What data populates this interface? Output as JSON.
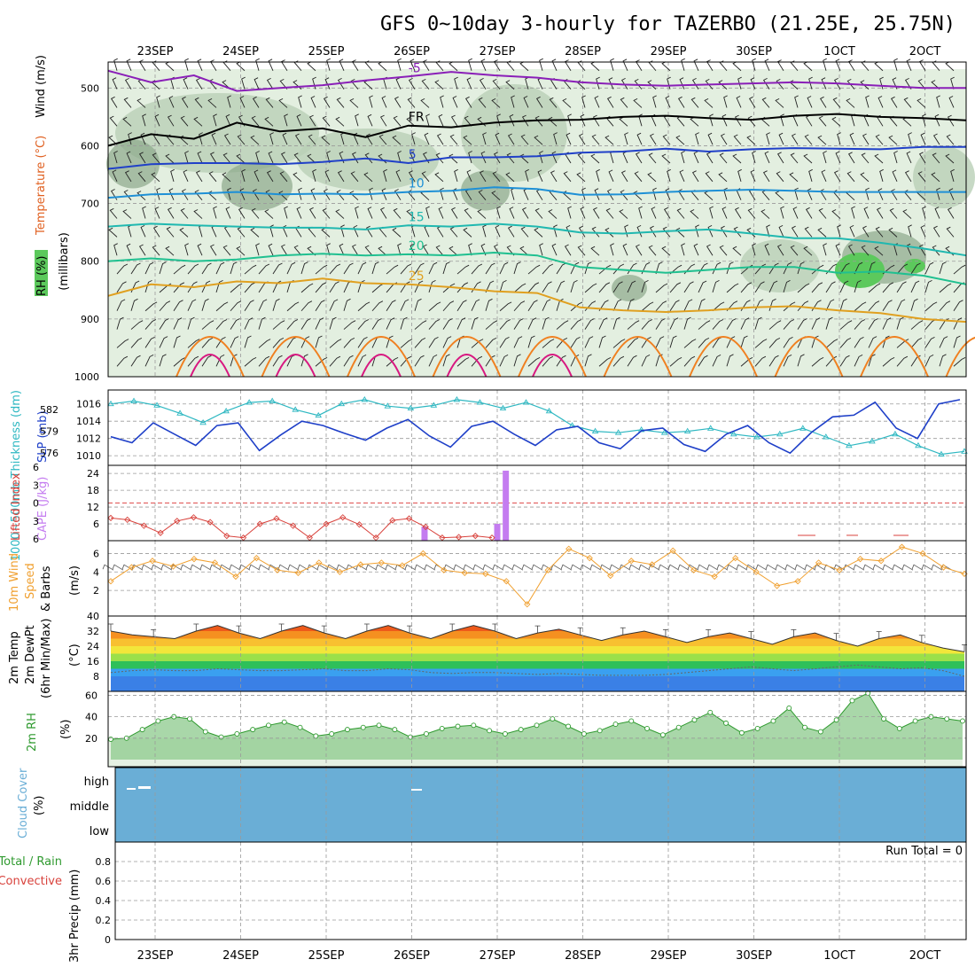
{
  "title": "GFS 0~10day 3-hourly for TAZERBO (21.25E, 25.75N)",
  "dates": [
    "23SEP",
    "24SEP",
    "25SEP",
    "26SEP",
    "27SEP",
    "28SEP",
    "29SEP",
    "30SEP",
    "1OCT",
    "2OCT"
  ],
  "colors": {
    "rh_light": "#e3efe0",
    "rh_mid": "#b9cfb7",
    "rh_dark": "#8ca88a",
    "rh_green": "#5cc95c",
    "thickness": "#2fb8c2",
    "slp": "#1e3fc8",
    "lifted": "#d8423c",
    "cape": "#c47cf0",
    "wind10": "#f0a030",
    "rh2m_fill": "#8cc98c",
    "rh2m_line": "#2f9a2f",
    "cloud": "#6aaed6"
  },
  "labels": {
    "upper_wind": "Wind (m/s)",
    "upper_temp": "Temperature (°C)",
    "upper_rh": "RH (%)",
    "upper_pressure": "(millibars)",
    "thickness": "1000~500mb Thickness (dm)",
    "slp": "SLP (mb)",
    "lifted": "Lifted Index",
    "cape": "CAPE (J/kg)",
    "wind10_a": "10m Wind",
    "wind10_b": "Speed",
    "wind10_c": "& Barbs",
    "wind10_unit": "(m/s)",
    "temp_a": "2m Temp",
    "temp_b": "2m DewPt",
    "temp_c": "(6hr Min/Max)",
    "temp_unit": "(°C)",
    "rh2m": "2m RH",
    "rh2m_unit": "(%)",
    "cloud_a": "Cloud Cover",
    "cloud_unit": "(%)",
    "precip_a": "Total / Rain",
    "precip_b": "Convective",
    "precip_c": "3hr Precip (mm)",
    "run_total": "Run Total = 0"
  },
  "cloud_levels": [
    "high",
    "middle",
    "low"
  ],
  "chart_data": [
    {
      "type": "line",
      "title": "Upper air cross-section",
      "ylabel": "(millibars)",
      "yticks": [
        500,
        600,
        700,
        800,
        900,
        1000
      ],
      "ylim": [
        455,
        1000
      ],
      "contours": [
        {
          "label": "-5",
          "color": "#8a1fb8",
          "p": [
            470,
            490,
            478,
            505,
            500,
            495,
            487,
            480,
            472,
            478,
            482,
            490,
            494,
            496,
            494,
            492,
            490,
            492,
            496,
            500,
            500
          ]
        },
        {
          "label": "FR",
          "color": "#000000",
          "p": [
            600,
            580,
            588,
            560,
            575,
            570,
            585,
            565,
            568,
            560,
            556,
            555,
            550,
            548,
            552,
            555,
            548,
            545,
            550,
            552,
            556
          ]
        },
        {
          "label": "5",
          "color": "#2040c8",
          "p": [
            640,
            632,
            630,
            630,
            632,
            628,
            622,
            630,
            620,
            620,
            618,
            612,
            610,
            605,
            610,
            606,
            604,
            605,
            606,
            602,
            602
          ]
        },
        {
          "label": "10",
          "color": "#1e90d6",
          "p": [
            690,
            684,
            683,
            680,
            684,
            683,
            684,
            680,
            678,
            672,
            675,
            685,
            684,
            680,
            678,
            676,
            678,
            680,
            680,
            680,
            680
          ]
        },
        {
          "label": "15",
          "color": "#20b8b0",
          "p": [
            740,
            735,
            738,
            740,
            742,
            742,
            745,
            738,
            740,
            735,
            740,
            750,
            752,
            748,
            745,
            752,
            760,
            760,
            768,
            778,
            790
          ]
        },
        {
          "label": "20",
          "color": "#20c090",
          "p": [
            800,
            795,
            800,
            797,
            790,
            787,
            790,
            788,
            790,
            785,
            790,
            810,
            815,
            820,
            815,
            810,
            810,
            820,
            818,
            825,
            840
          ]
        },
        {
          "label": "25",
          "color": "#e0a020",
          "p": [
            860,
            840,
            845,
            835,
            838,
            830,
            838,
            840,
            845,
            852,
            855,
            880,
            885,
            888,
            885,
            880,
            878,
            885,
            890,
            900,
            905
          ]
        }
      ]
    },
    {
      "type": "line",
      "title": "Thickness and SLP",
      "series": [
        {
          "name": "1000~500mb Thickness (dm)",
          "yticks": [
            576,
            579,
            582
          ],
          "values": [
            582.8,
            583.2,
            582.6,
            581.5,
            580.2,
            581.8,
            583.0,
            583.2,
            582.0,
            581.2,
            582.8,
            583.4,
            582.5,
            582.2,
            582.6,
            583.4,
            583.0,
            582.2,
            583.0,
            581.8,
            579.8,
            579.0,
            578.8,
            579.2,
            578.8,
            579.0,
            579.4,
            578.6,
            578.2,
            578.6,
            579.4,
            578.2,
            577.0,
            577.6,
            578.6,
            577.0,
            575.8,
            576.2
          ]
        },
        {
          "name": "SLP (mb)",
          "yticks": [
            1010,
            1012,
            1014,
            1016
          ],
          "values": [
            1012.2,
            1011.5,
            1013.8,
            1012.5,
            1011.2,
            1013.5,
            1013.8,
            1010.6,
            1012.4,
            1014.0,
            1013.5,
            1012.6,
            1011.8,
            1013.2,
            1014.2,
            1012.3,
            1011.0,
            1013.4,
            1014.0,
            1012.5,
            1011.2,
            1013.0,
            1013.4,
            1011.5,
            1010.8,
            1012.9,
            1013.2,
            1011.3,
            1010.5,
            1012.5,
            1013.5,
            1011.5,
            1010.3,
            1012.7,
            1014.5,
            1014.7,
            1016.2,
            1013.2,
            1012.0,
            1016.0,
            1016.5
          ]
        }
      ]
    },
    {
      "type": "bar",
      "title": "Lifted Index and CAPE",
      "lifted_ticks": [
        -6,
        -3,
        0,
        3,
        6
      ],
      "cape_ticks": [
        6,
        12,
        18,
        24
      ],
      "lifted_index": [
        2.5,
        2.8,
        3.8,
        5.0,
        3.0,
        2.4,
        3.2,
        5.5,
        5.8,
        3.5,
        2.6,
        3.8,
        5.8,
        3.5,
        2.4,
        3.6,
        5.8,
        2.9,
        2.6,
        4.0,
        5.8,
        5.7,
        5.5,
        5.8
      ],
      "cape": [
        {
          "at": 3.7,
          "value": 5
        },
        {
          "at": 4.55,
          "value": 6
        },
        {
          "at": 4.65,
          "value": 25
        }
      ]
    },
    {
      "type": "line",
      "title": "10m Wind Speed",
      "yticks": [
        2,
        4,
        6
      ],
      "values": [
        3.0,
        4.5,
        5.2,
        4.6,
        5.4,
        5.0,
        3.5,
        5.5,
        4.2,
        3.9,
        5.0,
        4.0,
        4.8,
        5.0,
        4.7,
        6.0,
        4.2,
        3.9,
        3.8,
        3.0,
        0.5,
        4.2,
        6.5,
        5.5,
        3.6,
        5.2,
        4.8,
        6.3,
        4.2,
        3.5,
        5.5,
        4.0,
        2.5,
        3.0,
        5.0,
        4.2,
        5.4,
        5.2,
        6.7,
        6.0,
        4.5,
        3.8
      ]
    },
    {
      "type": "area",
      "title": "2m Temp / DewPt",
      "yticks": [
        8,
        16,
        24,
        32,
        40
      ],
      "temp": [
        32,
        30,
        29,
        28,
        32,
        35,
        31,
        28,
        32,
        35,
        31,
        28,
        32,
        35,
        31,
        28,
        32,
        35,
        32,
        28,
        31,
        33,
        30,
        27,
        30,
        32,
        29,
        26,
        29,
        31,
        28,
        25,
        29,
        31,
        27,
        24,
        28,
        30,
        26,
        23,
        21
      ],
      "dewpt": [
        10,
        11,
        11.5,
        11,
        11,
        12,
        11.5,
        11,
        11,
        11.5,
        12,
        11,
        11,
        12,
        11.5,
        10,
        9.5,
        10,
        10,
        9.5,
        9,
        9.5,
        9,
        8.5,
        8.5,
        8.5,
        9,
        10,
        11,
        12,
        13,
        12,
        11,
        12,
        13,
        14,
        13,
        12,
        12.5,
        11,
        8
      ]
    },
    {
      "type": "area",
      "title": "2m RH",
      "yticks": [
        20,
        40,
        60
      ],
      "values": [
        19,
        20,
        28,
        36,
        40,
        38,
        26,
        21,
        24,
        28,
        32,
        35,
        30,
        22,
        24,
        28,
        30,
        32,
        28,
        21,
        24,
        29,
        31,
        32,
        27,
        24,
        28,
        32,
        38,
        31,
        24,
        27,
        33,
        36,
        29,
        23,
        30,
        37,
        44,
        34,
        25,
        29,
        36,
        48,
        30,
        26,
        37,
        55,
        62,
        38,
        29,
        36,
        40,
        38,
        36
      ]
    },
    {
      "type": "heatmap",
      "title": "Cloud Cover",
      "categories": [
        "high",
        "middle",
        "low"
      ],
      "values": [
        0,
        0,
        0
      ]
    },
    {
      "type": "bar",
      "title": "3hr Precip",
      "ylabel": "3hr Precip (mm)",
      "yticks": [
        0,
        0.2,
        0.4,
        0.6,
        0.8
      ],
      "ylim": [
        0,
        1.0
      ],
      "values": [
        0
      ]
    }
  ]
}
